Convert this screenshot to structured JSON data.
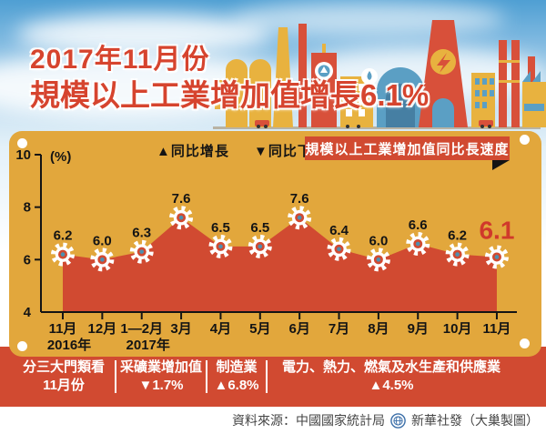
{
  "header": {
    "title_line1": "2017年11月份",
    "title_line2": "規模以上工業增加值增長6.1%"
  },
  "legend": {
    "increase": "▲同比增長",
    "decrease": "▼同比下降"
  },
  "chart_data": {
    "type": "area",
    "title": "規模以上工業增加值同比長速度",
    "unit": "(%)",
    "categories": [
      "11月",
      "12月",
      "1—2月",
      "3月",
      "4月",
      "5月",
      "6月",
      "7月",
      "8月",
      "9月",
      "10月",
      "11月"
    ],
    "values": [
      6.2,
      6.0,
      6.3,
      7.6,
      6.5,
      6.5,
      7.6,
      6.4,
      6.0,
      6.6,
      6.2,
      6.1
    ],
    "value_labels": [
      "6.2",
      "6.0",
      "6.3",
      "7.6",
      "6.5",
      "6.5",
      "7.6",
      "6.4",
      "6.0",
      "6.6",
      "6.2",
      "6.1"
    ],
    "highlight_index": 11,
    "ylim": [
      4,
      10
    ],
    "yticks": [
      4,
      6,
      8,
      10
    ],
    "year_markers": [
      {
        "category_index": 0,
        "label": "2016年"
      },
      {
        "category_index": 2,
        "label": "2017年"
      }
    ],
    "grid": false,
    "legend_position": "top",
    "marker": "gear-icon"
  },
  "breakdown": {
    "columns": [
      {
        "line1": "分三大門類看",
        "line2": "11月份"
      },
      {
        "line1": "采礦業增加值",
        "line2": "▼1.7%"
      },
      {
        "line1": "制造業",
        "line2": "▲6.8%"
      },
      {
        "line1": "電力、熱力、燃氣及水生產和供應業",
        "line2": "▲4.5%"
      }
    ]
  },
  "footer": {
    "source": "資料來源：中國國家統計局",
    "credit": "新華社發（大巢製圖）",
    "logo": "xinhua-globe-icon"
  },
  "colors": {
    "accent_red": "#d14a31",
    "highlight_red": "#d0392b",
    "panel_gold": "#e2a73c",
    "sky_blue": "#4f9fd3",
    "marker_dot_blue": "#4d8fb0",
    "illustration_yellow": "#e8b23f",
    "illustration_blue": "#5b9fc4"
  }
}
